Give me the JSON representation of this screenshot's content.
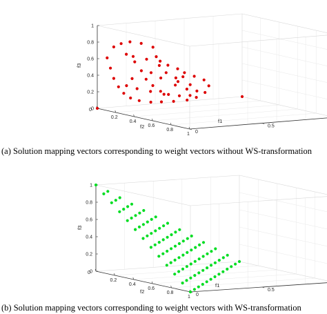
{
  "panels": [
    {
      "caption": "(a) Solution mapping vectors corresponding to weight vectors without WS-transformation"
    },
    {
      "caption": "(b) Solution mapping vectors corresponding to weight vectors with WS-transformation"
    }
  ],
  "chart_data": [
    {
      "type": "scatter3d",
      "title": "",
      "axes": {
        "f1": {
          "label": "f1",
          "range": [
            0,
            1
          ],
          "ticks": [
            "0",
            "0.5",
            "1"
          ]
        },
        "f2": {
          "label": "f2",
          "range": [
            0,
            1
          ],
          "ticks": [
            "0",
            "0.2",
            "0.4",
            "0.6",
            "0.8",
            "1"
          ]
        },
        "f3": {
          "label": "f3",
          "range": [
            0,
            1
          ],
          "ticks": [
            "0",
            "0.2",
            "0.4",
            "0.6",
            "0.8",
            "1"
          ]
        }
      },
      "grid": true,
      "marker_color": "#dd0000",
      "points_description": "ring-shaped cloud of solution points with two corner points",
      "points": []
    },
    {
      "type": "scatter3d",
      "title": "",
      "axes": {
        "f1": {
          "label": "f1",
          "range": [
            0,
            1
          ],
          "ticks": [
            "0",
            "0.5",
            "1"
          ]
        },
        "f2": {
          "label": "f2",
          "range": [
            0,
            1
          ],
          "ticks": [
            "0",
            "0.2",
            "0.4",
            "0.6",
            "0.8",
            "1"
          ]
        },
        "f3": {
          "label": "f3",
          "range": [
            0,
            1
          ],
          "ticks": [
            "0",
            "0.2",
            "0.4",
            "0.6",
            "0.8",
            "1"
          ]
        }
      },
      "grid": true,
      "marker_color": "#00dd22",
      "simplex_divisions": 12,
      "points": []
    }
  ]
}
